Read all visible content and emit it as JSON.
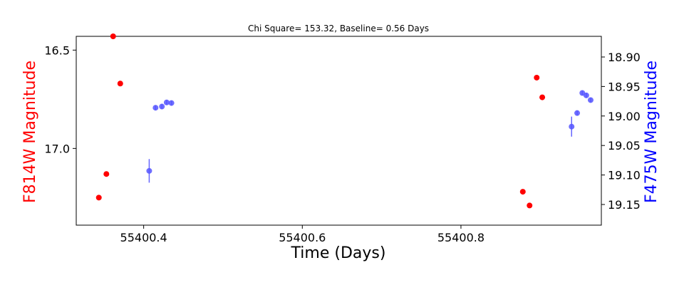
{
  "chart_data": {
    "type": "scatter",
    "title": "Chi Square= 153.32, Baseline= 0.56 Days",
    "xlabel": "Time (Days)",
    "xlim": [
      55400.315,
      55400.977
    ],
    "xticks": [
      55400.4,
      55400.6,
      55400.8
    ],
    "xtick_labels": [
      "55400.4",
      "55400.6",
      "55400.8"
    ],
    "grid": false,
    "left_axis": {
      "label": "F814W Magnitude",
      "label_color": "#ff0000",
      "inverted": true,
      "ylim": [
        16.43,
        17.39
      ],
      "ticks": [
        16.5,
        17.0
      ],
      "tick_labels": [
        "16.5",
        "17.0"
      ]
    },
    "right_axis": {
      "label": "F475W Magnitude",
      "label_color": "#0000ff",
      "inverted": true,
      "ylim": [
        18.865,
        19.185
      ],
      "ticks": [
        18.9,
        18.95,
        19.0,
        19.05,
        19.1,
        19.15
      ],
      "tick_labels": [
        "18.90",
        "18.95",
        "19.00",
        "19.05",
        "19.10",
        "19.15"
      ]
    },
    "series": [
      {
        "axis": "left",
        "color": "#ff0000",
        "x": [
          55400.3435,
          55400.353,
          55400.3615,
          55400.3705,
          55400.878,
          55400.8865,
          55400.8955,
          55400.9025
        ],
        "y": [
          17.25,
          17.13,
          16.43,
          16.67,
          17.22,
          17.29,
          16.64,
          16.74
        ]
      },
      {
        "axis": "right",
        "color": "#5555ff",
        "x": [
          55400.407,
          55400.415,
          55400.423,
          55400.429,
          55400.435,
          55400.9395,
          55400.9465,
          55400.953,
          55400.958,
          55400.9635
        ],
        "y": [
          19.093,
          18.986,
          18.984,
          18.977,
          18.978,
          19.018,
          18.995,
          18.961,
          18.965,
          18.973
        ],
        "err": [
          0.02,
          0.004,
          0.004,
          0.004,
          0.004,
          0.017,
          0.004,
          0.004,
          0.004,
          0.004
        ]
      }
    ]
  }
}
